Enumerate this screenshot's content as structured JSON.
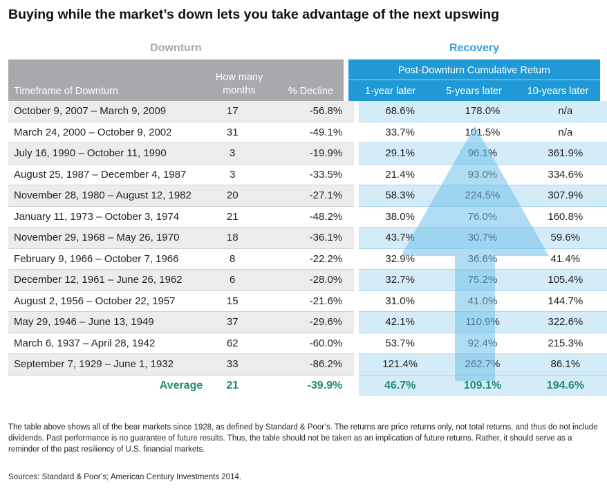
{
  "title": "Buying while the market’s down lets you take advantage of the next upswing",
  "sections": {
    "downturn": "Downturn",
    "recovery": "Recovery"
  },
  "header": {
    "timeframe": "Timeframe of Downturn",
    "months": "How many months",
    "decline": "% Decline",
    "recovery_group": "Post-Downturn Cumulative Return",
    "y1": "1-year later",
    "y5": "5-years later",
    "y10": "10-years later"
  },
  "rows": [
    {
      "timeframe": "October 9, 2007 – March 9, 2009",
      "months": "17",
      "decline": "-56.8%",
      "y1": "68.6%",
      "y5": "178.0%",
      "y10": "n/a"
    },
    {
      "timeframe": "March 24, 2000 – October 9, 2002",
      "months": "31",
      "decline": "-49.1%",
      "y1": "33.7%",
      "y5": "101.5%",
      "y10": "n/a"
    },
    {
      "timeframe": "July 16, 1990 – October 11, 1990",
      "months": "3",
      "decline": "-19.9%",
      "y1": "29.1%",
      "y5": "96.1%",
      "y10": "361.9%"
    },
    {
      "timeframe": "August 25, 1987 – December 4, 1987",
      "months": "3",
      "decline": "-33.5%",
      "y1": "21.4%",
      "y5": "93.0%",
      "y10": "334.6%"
    },
    {
      "timeframe": "November 28, 1980 – August 12, 1982",
      "months": "20",
      "decline": "-27.1%",
      "y1": "58.3%",
      "y5": "224.5%",
      "y10": "307.9%"
    },
    {
      "timeframe": "January 11, 1973 – October 3, 1974",
      "months": "21",
      "decline": "-48.2%",
      "y1": "38.0%",
      "y5": "76.0%",
      "y10": "160.8%"
    },
    {
      "timeframe": "November 29, 1968 – May 26, 1970",
      "months": "18",
      "decline": "-36.1%",
      "y1": "43.7%",
      "y5": "30.7%",
      "y10": "59.6%"
    },
    {
      "timeframe": "February 9, 1966 – October 7, 1966",
      "months": "8",
      "decline": "-22.2%",
      "y1": "32.9%",
      "y5": "36.6%",
      "y10": "41.4%"
    },
    {
      "timeframe": "December 12, 1961 – June 26, 1962",
      "months": "6",
      "decline": "-28.0%",
      "y1": "32.7%",
      "y5": "75.2%",
      "y10": "105.4%"
    },
    {
      "timeframe": "August 2, 1956 – October 22, 1957",
      "months": "15",
      "decline": "-21.6%",
      "y1": "31.0%",
      "y5": "41.0%",
      "y10": "144.7%"
    },
    {
      "timeframe": "May 29, 1946 – June 13, 1949",
      "months": "37",
      "decline": "-29.6%",
      "y1": "42.1%",
      "y5": "110.9%",
      "y10": "322.6%"
    },
    {
      "timeframe": "March 6, 1937 – April 28, 1942",
      "months": "62",
      "decline": "-60.0%",
      "y1": "53.7%",
      "y5": "92.4%",
      "y10": "215.3%"
    },
    {
      "timeframe": "September 7, 1929 – June 1, 1932",
      "months": "33",
      "decline": "-86.2%",
      "y1": "121.4%",
      "y5": "262.7%",
      "y10": "86.1%"
    }
  ],
  "average": {
    "label": "Average",
    "months": "21",
    "decline": "-39.9%",
    "y1": "46.7%",
    "y5": "109.1%",
    "y10": "194.6%"
  },
  "footnote": "The table above shows all of the bear markets since 1928, as defined by Standard & Poor’s. The returns are price returns only, not total returns, and thus do not include dividends. Past performance is no guarantee of future results. Thus, the table should not be taken as an implication of future returns. Rather, it should serve as a reminder of the past resiliency of U.S. financial markets.",
  "sources": "Sources: Standard & Poor’s; American Century Investments 2014.",
  "colors": {
    "downturn_header": "#a7a9ac",
    "recovery_header": "#1f9ad6",
    "recovery_label": "#2f9fd8",
    "average_text": "#1e8c6a",
    "arrow": "#6fc1ea"
  }
}
